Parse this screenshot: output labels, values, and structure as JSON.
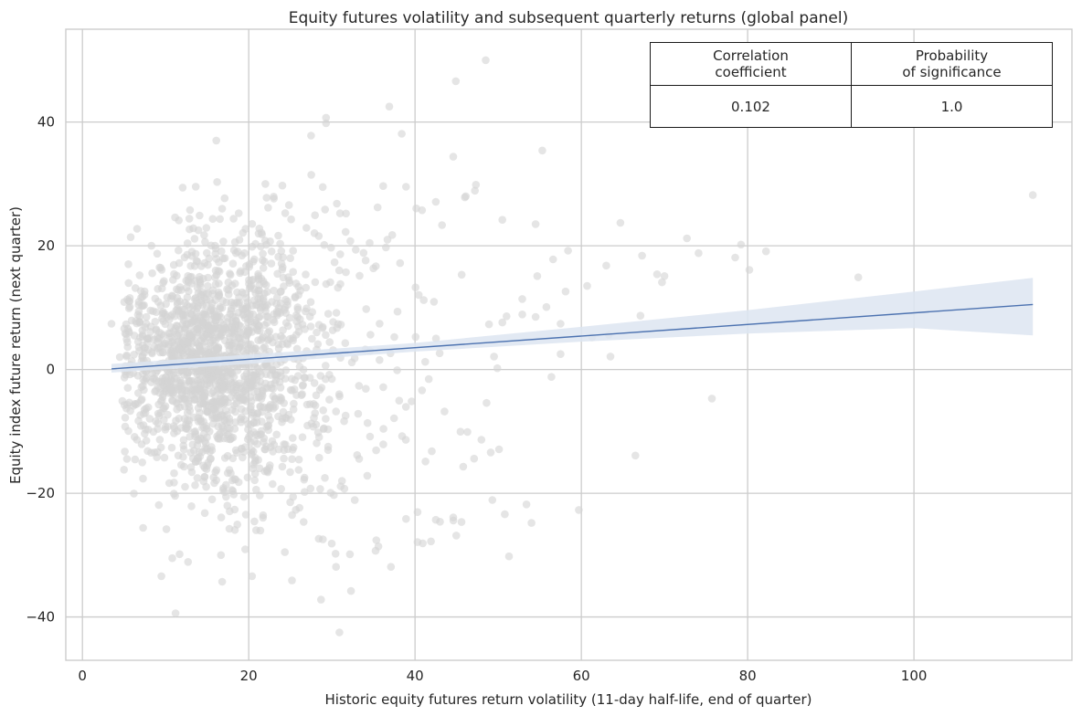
{
  "chart_data": {
    "type": "scatter",
    "title": "Equity futures volatility and subsequent quarterly returns (global panel)",
    "xlabel": "Historic equity futures return volatility (11-day half-life, end of quarter)",
    "ylabel": "Equity index future return (next quarter)",
    "xlim": [
      -2,
      119
    ],
    "ylim": [
      -47,
      55
    ],
    "xticks": [
      0,
      20,
      40,
      60,
      80,
      100
    ],
    "yticks": [
      -40,
      -20,
      0,
      20,
      40
    ],
    "xtick_labels": [
      "0",
      "20",
      "40",
      "60",
      "80",
      "100"
    ],
    "ytick_labels": [
      "−40",
      "−20",
      "0",
      "20",
      "40"
    ],
    "grid": true,
    "point_color": "#d3d3d3",
    "line_color": "#4c72b0",
    "band_color": "#dde5f1",
    "regression": {
      "x": [
        3.5,
        114.3
      ],
      "y": [
        0.1,
        10.5
      ]
    },
    "confidence_band": {
      "x": [
        3.5,
        20,
        40,
        60,
        80,
        100,
        114.3
      ],
      "upper": [
        0.9,
        2.4,
        4.3,
        6.9,
        9.6,
        12.6,
        14.8
      ],
      "lower": [
        -0.5,
        0.9,
        2.9,
        4.5,
        5.8,
        6.7,
        5.5
      ]
    },
    "outliers": [
      {
        "x": 48.5,
        "y": 50.0
      },
      {
        "x": 44.9,
        "y": 46.6
      },
      {
        "x": 36.9,
        "y": 42.5
      },
      {
        "x": 29.3,
        "y": 40.7
      },
      {
        "x": 29.3,
        "y": 39.8
      },
      {
        "x": 27.5,
        "y": 37.8
      },
      {
        "x": 38.4,
        "y": 38.1
      },
      {
        "x": 16.1,
        "y": 37.0
      },
      {
        "x": 44.6,
        "y": 34.4
      },
      {
        "x": 55.3,
        "y": 35.4
      },
      {
        "x": 16.2,
        "y": 30.3
      },
      {
        "x": 22.0,
        "y": 30.0
      },
      {
        "x": 28.9,
        "y": 29.5
      },
      {
        "x": 47.2,
        "y": 28.9
      },
      {
        "x": 114.3,
        "y": 28.2
      },
      {
        "x": 46.1,
        "y": 28.0
      },
      {
        "x": 42.5,
        "y": 27.1
      },
      {
        "x": 30.6,
        "y": 26.8
      },
      {
        "x": 16.8,
        "y": 26.0
      },
      {
        "x": 35.5,
        "y": 26.2
      },
      {
        "x": 50.5,
        "y": 24.2
      },
      {
        "x": 64.7,
        "y": 23.7
      },
      {
        "x": 54.5,
        "y": 23.5
      },
      {
        "x": 72.7,
        "y": 21.2
      },
      {
        "x": 58.4,
        "y": 19.2
      },
      {
        "x": 74.1,
        "y": 18.8
      },
      {
        "x": 79.2,
        "y": 20.2
      },
      {
        "x": 82.2,
        "y": 19.1
      },
      {
        "x": 67.3,
        "y": 18.4
      },
      {
        "x": 78.5,
        "y": 18.1
      },
      {
        "x": 56.6,
        "y": 17.8
      },
      {
        "x": 63.0,
        "y": 16.8
      },
      {
        "x": 80.2,
        "y": 16.1
      },
      {
        "x": 69.1,
        "y": 15.4
      },
      {
        "x": 70.0,
        "y": 15.1
      },
      {
        "x": 93.3,
        "y": 14.9
      },
      {
        "x": 69.7,
        "y": 14.1
      },
      {
        "x": 60.7,
        "y": 13.5
      },
      {
        "x": 58.1,
        "y": 12.6
      },
      {
        "x": 61.3,
        "y": 5.2
      },
      {
        "x": 63.3,
        "y": 5.6
      },
      {
        "x": 67.1,
        "y": 8.7
      },
      {
        "x": 63.5,
        "y": 2.1
      },
      {
        "x": 57.5,
        "y": 2.5
      },
      {
        "x": 56.4,
        "y": -1.2
      },
      {
        "x": 75.7,
        "y": -4.7
      },
      {
        "x": 66.5,
        "y": -13.9
      },
      {
        "x": 59.7,
        "y": -22.7
      },
      {
        "x": 53.4,
        "y": -21.8
      },
      {
        "x": 54.0,
        "y": -24.8
      },
      {
        "x": 51.3,
        "y": -30.2
      },
      {
        "x": 49.3,
        "y": -21.1
      },
      {
        "x": 50.8,
        "y": -23.4
      },
      {
        "x": 44.6,
        "y": -23.9
      },
      {
        "x": 43.0,
        "y": -24.6
      },
      {
        "x": 42.5,
        "y": -24.3
      },
      {
        "x": 40.3,
        "y": -27.9
      },
      {
        "x": 37.1,
        "y": -31.9
      },
      {
        "x": 35.6,
        "y": -28.6
      },
      {
        "x": 32.3,
        "y": -35.8
      },
      {
        "x": 30.5,
        "y": -31.9
      },
      {
        "x": 30.9,
        "y": -42.5
      },
      {
        "x": 28.7,
        "y": -37.2
      },
      {
        "x": 25.2,
        "y": -34.1
      },
      {
        "x": 16.8,
        "y": -34.3
      },
      {
        "x": 20.4,
        "y": -33.4
      },
      {
        "x": 11.2,
        "y": -39.4
      },
      {
        "x": 9.5,
        "y": -33.4
      },
      {
        "x": 10.8,
        "y": -30.5
      },
      {
        "x": 12.7,
        "y": -31.1
      },
      {
        "x": 7.3,
        "y": -25.6
      },
      {
        "x": 10.1,
        "y": -25.8
      },
      {
        "x": 48.6,
        "y": -5.4
      },
      {
        "x": 50.1,
        "y": -12.9
      },
      {
        "x": 49.1,
        "y": -13.4
      },
      {
        "x": 47.1,
        "y": -14.4
      },
      {
        "x": 45.8,
        "y": -15.7
      },
      {
        "x": 46.3,
        "y": -10.1
      },
      {
        "x": 48.9,
        "y": 7.3
      },
      {
        "x": 50.5,
        "y": 7.6
      },
      {
        "x": 51.0,
        "y": 8.6
      },
      {
        "x": 49.5,
        "y": 2.1
      },
      {
        "x": 49.9,
        "y": 0.2
      },
      {
        "x": 52.9,
        "y": 8.9
      },
      {
        "x": 54.5,
        "y": 8.5
      },
      {
        "x": 55.8,
        "y": 10.1
      },
      {
        "x": 54.7,
        "y": 15.1
      },
      {
        "x": 52.9,
        "y": 11.4
      },
      {
        "x": 57.5,
        "y": 7.4
      },
      {
        "x": 3.5,
        "y": 7.4
      },
      {
        "x": 4.5,
        "y": 2.0
      },
      {
        "x": 4.8,
        "y": -5.1
      },
      {
        "x": 5.0,
        "y": -16.2
      },
      {
        "x": 8.3,
        "y": 20.0
      },
      {
        "x": 11.6,
        "y": 24.1
      },
      {
        "x": 14.9,
        "y": 22.9
      }
    ],
    "cluster": {
      "n": 1800,
      "seed": 7,
      "x_center": 14.5,
      "x_spread": 6.5,
      "y_mean": 1.0,
      "y_sd": 10.0,
      "x_min": 5.0,
      "x_max": 48.0,
      "y_clip": [
        -30,
        32
      ]
    },
    "stats_table": {
      "headers": [
        "Correlation\ncoefficient",
        "Probability\nof significance"
      ],
      "values": [
        "0.102",
        "1.0"
      ]
    }
  }
}
